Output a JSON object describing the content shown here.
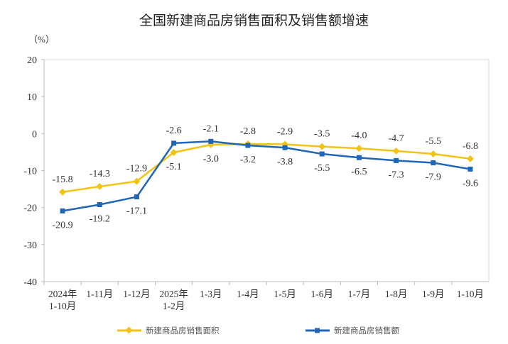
{
  "chart_data": {
    "type": "line",
    "title": "全国新建商品房销售面积及销售额增速",
    "ylabel": "（%）",
    "xlabel": "",
    "ylim": [
      -40,
      20
    ],
    "yticks": [
      20,
      10,
      0,
      -10,
      -20,
      -30,
      -40
    ],
    "grid": false,
    "legend_position": "bottom",
    "categories": [
      [
        "2024年",
        "1-10月"
      ],
      [
        "1-11月"
      ],
      [
        "1-12月"
      ],
      [
        "2025年",
        "1-2月"
      ],
      [
        "1-3月"
      ],
      [
        "1-4月"
      ],
      [
        "1-5月"
      ],
      [
        "1-6月"
      ],
      [
        "1-7月"
      ],
      [
        "1-8月"
      ],
      [
        "1-9月"
      ],
      [
        "1-10月"
      ]
    ],
    "series": [
      {
        "name": "新建商品房销售面积",
        "color": "#f2c314",
        "marker": "diamond",
        "values": [
          -15.8,
          -14.3,
          -12.9,
          -5.1,
          -3.0,
          -2.8,
          -2.9,
          -3.5,
          -4.0,
          -4.7,
          -5.5,
          -6.8
        ]
      },
      {
        "name": "新建商品房销售额",
        "color": "#1f66b8",
        "marker": "square",
        "values": [
          -20.9,
          -19.2,
          -17.1,
          -2.6,
          -2.1,
          -3.2,
          -3.8,
          -5.5,
          -6.5,
          -7.3,
          -7.9,
          -9.6
        ]
      }
    ]
  }
}
